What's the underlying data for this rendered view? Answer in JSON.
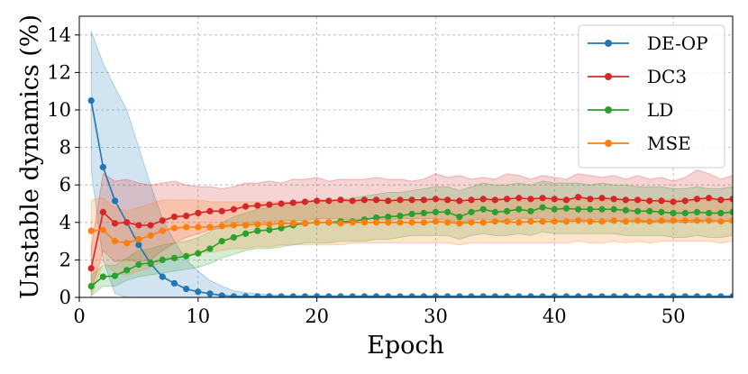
{
  "chart_data": {
    "type": "line",
    "title": "",
    "xlabel": "Epoch",
    "ylabel": "Unstable dynamics (%)",
    "xlim": [
      0,
      55
    ],
    "ylim": [
      0,
      15
    ],
    "xticks": [
      0,
      10,
      20,
      30,
      40,
      50
    ],
    "yticks": [
      0,
      2,
      4,
      6,
      8,
      10,
      12,
      14
    ],
    "grid": true,
    "legend_position": "top-right",
    "x": [
      1,
      2,
      3,
      4,
      5,
      6,
      7,
      8,
      9,
      10,
      11,
      12,
      13,
      14,
      15,
      16,
      17,
      18,
      19,
      20,
      21,
      22,
      23,
      24,
      25,
      26,
      27,
      28,
      29,
      30,
      31,
      32,
      33,
      34,
      35,
      36,
      37,
      38,
      39,
      40,
      41,
      42,
      43,
      44,
      45,
      46,
      47,
      48,
      49,
      50,
      51,
      52,
      53,
      54,
      55
    ],
    "series": [
      {
        "name": "DE-OP",
        "color": "#1f77b4",
        "values": [
          10.5,
          6.95,
          5.15,
          4.0,
          2.8,
          1.8,
          1.1,
          0.75,
          0.45,
          0.3,
          0.2,
          0.1,
          0.05,
          0.05,
          0.05,
          0.05,
          0.05,
          0.05,
          0.05,
          0.05,
          0.05,
          0.05,
          0.05,
          0.05,
          0.05,
          0.05,
          0.05,
          0.05,
          0.05,
          0.05,
          0.05,
          0.05,
          0.05,
          0.05,
          0.05,
          0.05,
          0.05,
          0.05,
          0.05,
          0.05,
          0.05,
          0.05,
          0.05,
          0.05,
          0.05,
          0.05,
          0.05,
          0.05,
          0.05,
          0.05,
          0.05,
          0.05,
          0.05,
          0.05,
          0.05
        ],
        "upper": [
          14.2,
          12.5,
          11.2,
          10.0,
          8.0,
          6.0,
          4.2,
          3.0,
          2.0,
          1.4,
          0.9,
          0.6,
          0.35,
          0.25,
          0.2,
          0.15,
          0.12,
          0.1,
          0.1,
          0.1,
          0.1,
          0.1,
          0.1,
          0.1,
          0.1,
          0.1,
          0.1,
          0.1,
          0.1,
          0.1,
          0.1,
          0.1,
          0.1,
          0.1,
          0.1,
          0.1,
          0.1,
          0.1,
          0.1,
          0.1,
          0.1,
          0.1,
          0.1,
          0.1,
          0.1,
          0.1,
          0.1,
          0.1,
          0.1,
          0.1,
          0.1,
          0.1,
          0.1,
          0.1,
          0.1
        ],
        "lower": [
          6.8,
          2.0,
          0.2,
          0,
          0,
          0,
          0,
          0,
          0,
          0,
          0,
          0,
          0,
          0,
          0,
          0,
          0,
          0,
          0,
          0,
          0,
          0,
          0,
          0,
          0,
          0,
          0,
          0,
          0,
          0,
          0,
          0,
          0,
          0,
          0,
          0,
          0,
          0,
          0,
          0,
          0,
          0,
          0,
          0,
          0,
          0,
          0,
          0,
          0,
          0,
          0,
          0,
          0,
          0,
          0
        ]
      },
      {
        "name": "DC3",
        "color": "#d62728",
        "values": [
          1.55,
          4.55,
          3.95,
          4.0,
          3.85,
          3.85,
          4.1,
          4.3,
          4.35,
          4.5,
          4.6,
          4.6,
          4.7,
          4.85,
          4.9,
          4.95,
          5.0,
          5.05,
          5.1,
          5.15,
          5.15,
          5.2,
          5.15,
          5.2,
          5.2,
          5.15,
          5.2,
          5.2,
          5.2,
          5.25,
          5.2,
          5.15,
          5.2,
          5.25,
          5.2,
          5.25,
          5.3,
          5.25,
          5.3,
          5.25,
          5.2,
          5.35,
          5.25,
          5.3,
          5.25,
          5.2,
          5.2,
          5.15,
          5.15,
          5.1,
          5.15,
          5.25,
          5.3,
          5.2,
          5.25
        ],
        "upper": [
          2.6,
          6.6,
          6.2,
          6.3,
          6.1,
          6.0,
          6.1,
          6.2,
          6.0,
          5.9,
          5.9,
          5.8,
          5.9,
          6.1,
          6.1,
          6.2,
          6.1,
          6.3,
          6.3,
          6.4,
          6.2,
          6.3,
          6.3,
          6.3,
          6.4,
          6.3,
          6.3,
          6.2,
          6.3,
          6.6,
          6.4,
          6.5,
          6.3,
          6.4,
          6.3,
          6.6,
          6.5,
          6.3,
          6.5,
          6.4,
          6.3,
          6.6,
          6.5,
          6.4,
          6.5,
          6.3,
          6.5,
          6.3,
          6.4,
          6.2,
          6.4,
          6.8,
          6.6,
          6.3,
          6.5
        ],
        "lower": [
          0.3,
          2.5,
          1.9,
          2.0,
          1.9,
          2.0,
          2.5,
          2.9,
          3.2,
          3.4,
          3.6,
          3.7,
          3.8,
          3.9,
          4.0,
          4.0,
          4.1,
          4.1,
          4.1,
          4.2,
          4.2,
          4.2,
          4.1,
          4.2,
          4.2,
          4.1,
          4.2,
          4.2,
          4.2,
          4.2,
          4.1,
          4.0,
          4.1,
          4.2,
          4.1,
          4.1,
          4.2,
          4.2,
          4.2,
          4.1,
          4.1,
          4.2,
          4.1,
          4.2,
          4.1,
          4.1,
          4.0,
          4.0,
          4.0,
          4.0,
          4.0,
          4.0,
          4.1,
          4.1,
          4.1
        ]
      },
      {
        "name": "LD",
        "color": "#2ca02c",
        "values": [
          0.6,
          1.1,
          1.15,
          1.45,
          1.75,
          1.85,
          2.0,
          2.1,
          2.2,
          2.35,
          2.6,
          3.0,
          3.2,
          3.4,
          3.55,
          3.6,
          3.7,
          3.85,
          3.95,
          4.0,
          4.0,
          4.05,
          4.05,
          4.15,
          4.25,
          4.3,
          4.35,
          4.45,
          4.5,
          4.55,
          4.55,
          4.3,
          4.55,
          4.7,
          4.55,
          4.6,
          4.7,
          4.6,
          4.8,
          4.7,
          4.75,
          4.7,
          4.7,
          4.7,
          4.7,
          4.65,
          4.6,
          4.6,
          4.55,
          4.5,
          4.5,
          4.55,
          4.5,
          4.5,
          4.55
        ],
        "upper": [
          1.2,
          1.7,
          1.7,
          2.1,
          2.5,
          2.6,
          2.8,
          2.9,
          3.0,
          3.2,
          3.5,
          4.0,
          4.3,
          4.5,
          4.7,
          4.8,
          4.9,
          5.0,
          5.1,
          5.2,
          5.2,
          5.2,
          5.3,
          5.4,
          5.5,
          5.6,
          5.6,
          5.7,
          5.8,
          5.9,
          5.9,
          5.7,
          5.9,
          6.1,
          6.0,
          6.0,
          6.1,
          6.0,
          6.2,
          6.1,
          6.1,
          6.1,
          6.0,
          6.1,
          6.0,
          6.0,
          5.9,
          5.9,
          5.9,
          5.8,
          5.8,
          5.9,
          5.8,
          5.8,
          5.9
        ],
        "lower": [
          0.1,
          0.6,
          0.6,
          0.9,
          1.1,
          1.2,
          1.3,
          1.4,
          1.5,
          1.6,
          1.8,
          2.1,
          2.3,
          2.5,
          2.6,
          2.6,
          2.7,
          2.8,
          2.9,
          2.9,
          2.9,
          3.0,
          3.0,
          3.0,
          3.1,
          3.1,
          3.2,
          3.3,
          3.3,
          3.3,
          3.3,
          3.1,
          3.3,
          3.4,
          3.3,
          3.3,
          3.4,
          3.3,
          3.5,
          3.4,
          3.4,
          3.4,
          3.4,
          3.4,
          3.4,
          3.3,
          3.3,
          3.3,
          3.3,
          3.2,
          3.2,
          3.3,
          3.2,
          3.2,
          3.3
        ]
      },
      {
        "name": "MSE",
        "color": "#ff7f0e",
        "values": [
          3.55,
          3.6,
          3.0,
          2.9,
          3.1,
          3.3,
          3.55,
          3.7,
          3.75,
          3.75,
          3.75,
          3.8,
          3.85,
          3.85,
          3.9,
          3.9,
          3.95,
          3.95,
          3.95,
          4.0,
          4.0,
          3.95,
          4.0,
          4.0,
          4.0,
          4.0,
          4.0,
          4.0,
          4.0,
          4.05,
          4.0,
          3.95,
          4.0,
          4.0,
          4.05,
          4.05,
          4.0,
          4.05,
          4.05,
          4.05,
          4.05,
          4.1,
          4.05,
          4.05,
          4.1,
          4.05,
          4.1,
          4.05,
          4.1,
          4.1,
          4.1,
          4.1,
          4.1,
          4.05,
          4.1
        ],
        "upper": [
          5.2,
          5.3,
          4.8,
          4.6,
          4.8,
          5.0,
          5.2,
          5.2,
          5.2,
          5.2,
          5.1,
          5.1,
          5.1,
          5.1,
          5.1,
          5.1,
          5.1,
          5.1,
          5.1,
          5.2,
          5.2,
          5.1,
          5.1,
          5.1,
          5.1,
          5.1,
          5.1,
          5.1,
          5.1,
          5.2,
          5.1,
          5.1,
          5.1,
          5.1,
          5.2,
          5.2,
          5.1,
          5.2,
          5.2,
          5.2,
          5.2,
          5.2,
          5.2,
          5.2,
          5.2,
          5.2,
          5.2,
          5.2,
          5.2,
          5.2,
          5.2,
          5.2,
          5.2,
          5.2,
          5.2
        ],
        "lower": [
          0,
          1.9,
          1.3,
          1.2,
          1.4,
          1.6,
          1.9,
          2.2,
          2.3,
          2.4,
          2.4,
          2.5,
          2.6,
          2.6,
          2.7,
          2.7,
          2.8,
          2.8,
          2.8,
          2.8,
          2.8,
          2.8,
          2.9,
          2.9,
          2.9,
          2.9,
          2.9,
          2.9,
          2.9,
          2.9,
          2.9,
          2.8,
          2.9,
          2.9,
          2.9,
          2.9,
          2.9,
          2.9,
          2.9,
          2.9,
          2.9,
          3.0,
          2.9,
          2.9,
          3.0,
          2.9,
          3.0,
          2.9,
          3.0,
          3.0,
          3.0,
          3.0,
          3.0,
          2.9,
          3.0
        ]
      }
    ]
  }
}
